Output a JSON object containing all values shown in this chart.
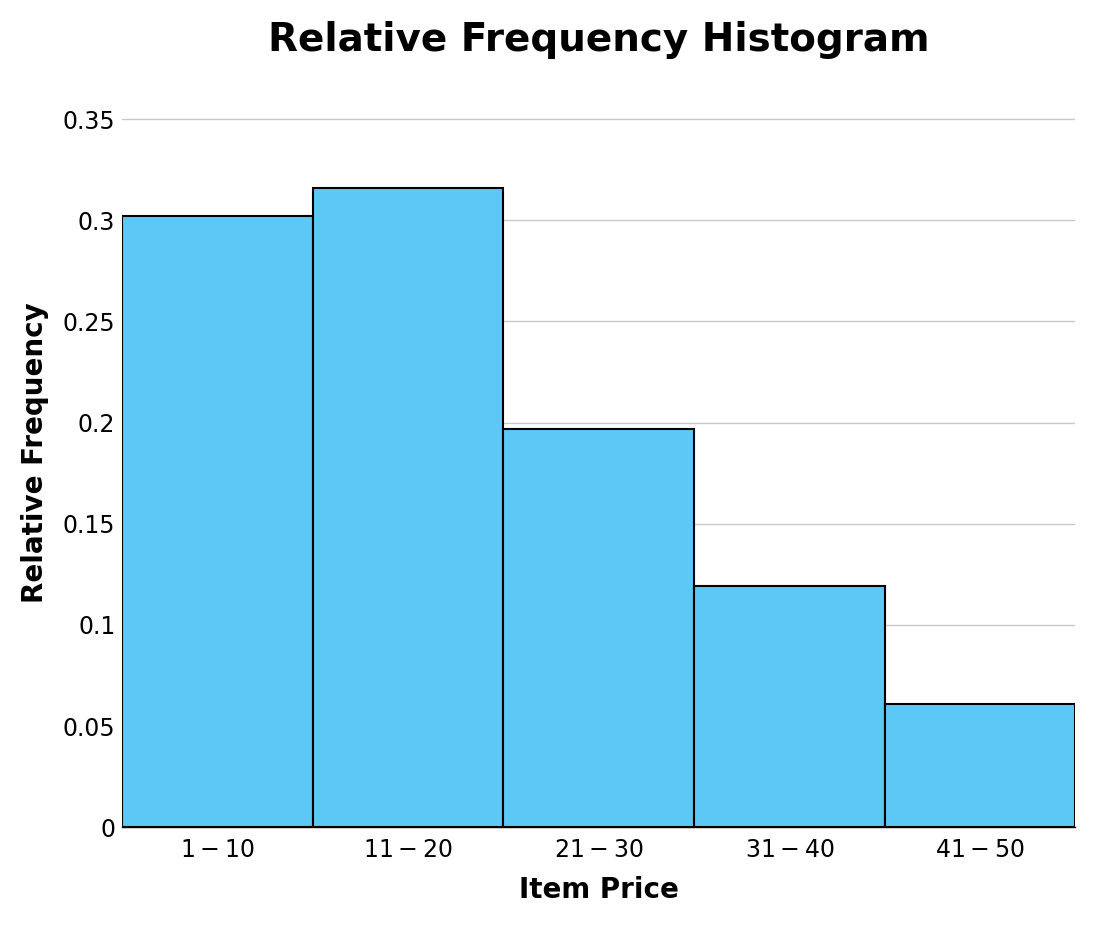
{
  "title": "Relative Frequency Histogram",
  "xlabel": "Item Price",
  "ylabel": "Relative Frequency",
  "categories": [
    "$1 - $10",
    "$11 - $20",
    "$21 - $30",
    "$31 - $40",
    "$41 - $50"
  ],
  "values": [
    0.302,
    0.316,
    0.197,
    0.119,
    0.061
  ],
  "bar_color": "#5BC8F5",
  "bar_edge_color": "#000000",
  "bar_edge_width": 1.5,
  "ylim": [
    0,
    0.37
  ],
  "yticks": [
    0,
    0.05,
    0.1,
    0.15,
    0.2,
    0.25,
    0.3,
    0.35
  ],
  "ytick_labels": [
    "0",
    "0.05",
    "0.1",
    "0.15",
    "0.2",
    "0.25",
    "0.3",
    "0.35"
  ],
  "title_fontsize": 28,
  "label_fontsize": 20,
  "tick_fontsize": 17,
  "grid": true,
  "grid_color": "#c8c8c8",
  "background_color": "#ffffff"
}
